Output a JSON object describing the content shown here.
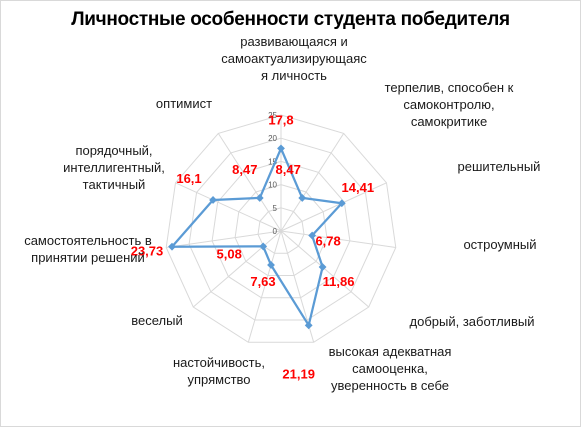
{
  "chart_data": {
    "type": "radar",
    "title": "Личностные особенности студента победителя",
    "categories": [
      [
        "развивающаяся и",
        "самоактуализирующаяс",
        "я личность"
      ],
      [
        "терпелив, способен к",
        "самоконтролю,",
        "самокритике"
      ],
      [
        "решительный"
      ],
      [
        "остроумный"
      ],
      [
        "добрый, заботливый"
      ],
      [
        "высокая адекватная",
        "самооценка,",
        "уверенность в себе"
      ],
      [
        "настойчивость,",
        "упрямство"
      ],
      [
        "веселый"
      ],
      [
        "самостоятельность в",
        "принятии решений"
      ],
      [
        "порядочный,",
        "интеллигентный,",
        "тактичный"
      ],
      [
        "оптимист"
      ]
    ],
    "values": [
      17.8,
      8.47,
      14.41,
      6.78,
      11.86,
      21.19,
      7.63,
      5.08,
      23.73,
      16.1,
      8.47
    ],
    "data_labels": [
      "17,8",
      "8,47",
      "14,41",
      "6,78",
      "11,86",
      "21,19",
      "7,63",
      "5,08",
      "23,73",
      "16,1",
      "8,47"
    ],
    "ticks": [
      "0",
      "5",
      "10",
      "15",
      "20",
      "25"
    ],
    "rmax": 25,
    "series_color": "#5b9bd5",
    "label_color": "#ff0000"
  }
}
